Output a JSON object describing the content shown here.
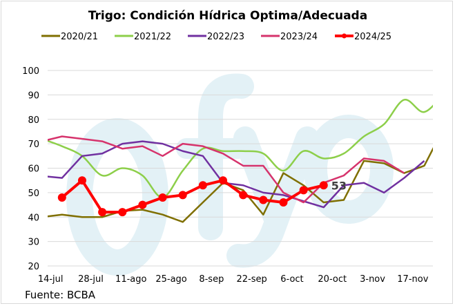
{
  "chart_data": {
    "type": "line",
    "title": "Trigo: Condición Hídrica Optima/Adecuada",
    "source": "Fuente: BCBA",
    "watermark": "ofyo",
    "xlabel": "",
    "ylabel": "",
    "x_axis": "date",
    "xlim": [
      "2024-07-13",
      "2024-11-24"
    ],
    "ylim": [
      20,
      100
    ],
    "yticks": [
      20,
      30,
      40,
      50,
      60,
      70,
      80,
      90,
      100
    ],
    "xtick_dates": [
      "2024-07-14",
      "2024-07-28",
      "2024-08-11",
      "2024-08-25",
      "2024-09-08",
      "2024-09-22",
      "2024-10-06",
      "2024-10-20",
      "2024-11-03",
      "2024-11-17"
    ],
    "xtick_labels": [
      "14-jul",
      "28-jul",
      "11-ago",
      "25-ago",
      "8-sep",
      "22-sep",
      "6-oct",
      "20-oct",
      "3-nov",
      "17-nov"
    ],
    "grid": "horizontal",
    "legend_position": "top",
    "dates": [
      "2024-07-11",
      "2024-07-18",
      "2024-07-25",
      "2024-08-01",
      "2024-08-08",
      "2024-08-15",
      "2024-08-22",
      "2024-08-29",
      "2024-09-05",
      "2024-09-12",
      "2024-09-19",
      "2024-09-26",
      "2024-10-03",
      "2024-10-10",
      "2024-10-17",
      "2024-10-24",
      "2024-10-31",
      "2024-11-07",
      "2024-11-14",
      "2024-11-21",
      "2024-11-28"
    ],
    "series": [
      {
        "name": "2020/21",
        "color": "#7f6f00",
        "smooth": false,
        "width": 2.5,
        "values": [
          40,
          41,
          40,
          40,
          42.5,
          43,
          41,
          38,
          46,
          54,
          51,
          41,
          58,
          53,
          46,
          47,
          63,
          62,
          58,
          61,
          77
        ]
      },
      {
        "name": "2021/22",
        "color": "#8dcf4a",
        "smooth": true,
        "width": 2.5,
        "values": [
          72,
          69,
          65,
          57,
          60,
          57,
          48,
          59,
          68,
          67,
          67,
          66,
          59,
          67,
          64,
          66,
          73,
          78,
          88,
          83,
          91
        ]
      },
      {
        "name": "2022/23",
        "color": "#7030a0",
        "smooth": false,
        "width": 2.5,
        "values": [
          56.8,
          56,
          65,
          66,
          70,
          71,
          70,
          67,
          65,
          54,
          53,
          50,
          49,
          46.5,
          44,
          53,
          54,
          50,
          56,
          63,
          null
        ]
      },
      {
        "name": "2023/24",
        "color": "#d6336c",
        "smooth": false,
        "width": 2.5,
        "values": [
          71,
          73,
          72,
          71,
          68,
          69,
          65,
          70,
          69,
          66,
          61,
          61,
          50,
          46,
          54,
          57,
          64,
          63,
          58,
          null,
          null
        ]
      },
      {
        "name": "2024/25",
        "color": "#ff0000",
        "smooth": false,
        "width": 4,
        "markers": true,
        "values": [
          null,
          48,
          55,
          42,
          42,
          45,
          48,
          49,
          53,
          55,
          49,
          47,
          46,
          51,
          53,
          null,
          null,
          null,
          null,
          null,
          null
        ],
        "last_label": "53"
      }
    ]
  }
}
